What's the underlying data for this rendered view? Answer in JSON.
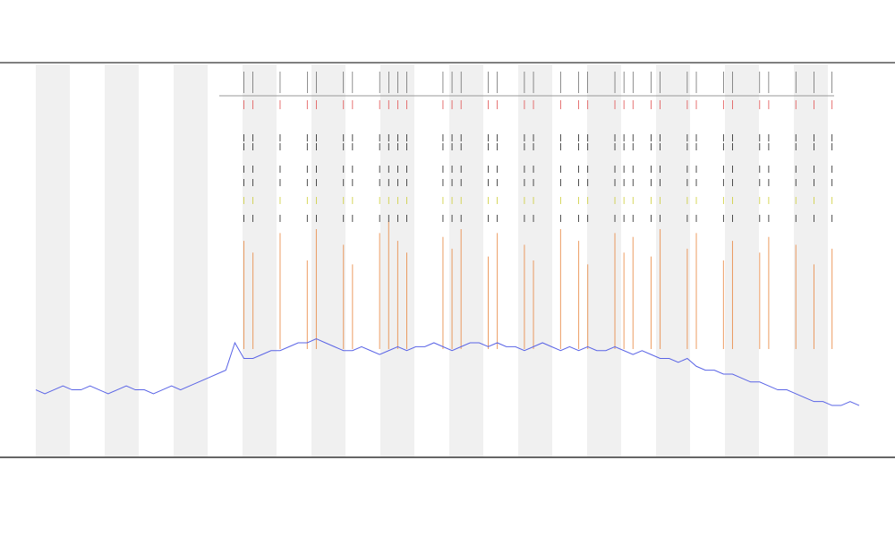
{
  "chart_data": {
    "type": "line",
    "xlim": [
      0,
      91
    ],
    "ylim": [
      0,
      100
    ],
    "series": [
      {
        "color": "#5a64e6",
        "values": [
          17,
          16,
          17,
          18,
          17,
          17,
          18,
          17,
          16,
          17,
          18,
          17,
          17,
          16,
          17,
          18,
          17,
          18,
          19,
          20,
          21,
          22,
          29,
          25,
          25,
          26,
          27,
          27,
          28,
          29,
          29,
          30,
          29,
          28,
          27,
          27,
          28,
          27,
          26,
          27,
          28,
          27,
          28,
          28,
          29,
          28,
          27,
          28,
          29,
          29,
          28,
          29,
          28,
          28,
          27,
          28,
          29,
          28,
          27,
          28,
          27,
          28,
          27,
          27,
          28,
          27,
          26,
          27,
          26,
          25,
          25,
          24,
          25,
          23,
          22,
          22,
          21,
          21,
          20,
          19,
          19,
          18,
          17,
          17,
          16,
          15,
          14,
          14,
          13,
          13,
          14,
          13
        ]
      }
    ],
    "events": {
      "color": "#e8843c",
      "x": [
        23,
        24,
        27,
        30,
        31,
        34,
        35,
        38,
        39,
        40,
        41,
        45,
        46,
        47,
        50,
        51,
        54,
        55,
        58,
        60,
        61,
        64,
        65,
        66,
        68,
        69,
        72,
        73,
        76,
        77,
        80,
        81,
        84,
        86,
        88
      ],
      "values": [
        55,
        52,
        57,
        50,
        58,
        54,
        49,
        57,
        60,
        55,
        52,
        56,
        53,
        58,
        51,
        57,
        54,
        50,
        58,
        55,
        49,
        57,
        52,
        56,
        51,
        58,
        53,
        57,
        50,
        55,
        52,
        56,
        54,
        49,
        53
      ]
    }
  }
}
